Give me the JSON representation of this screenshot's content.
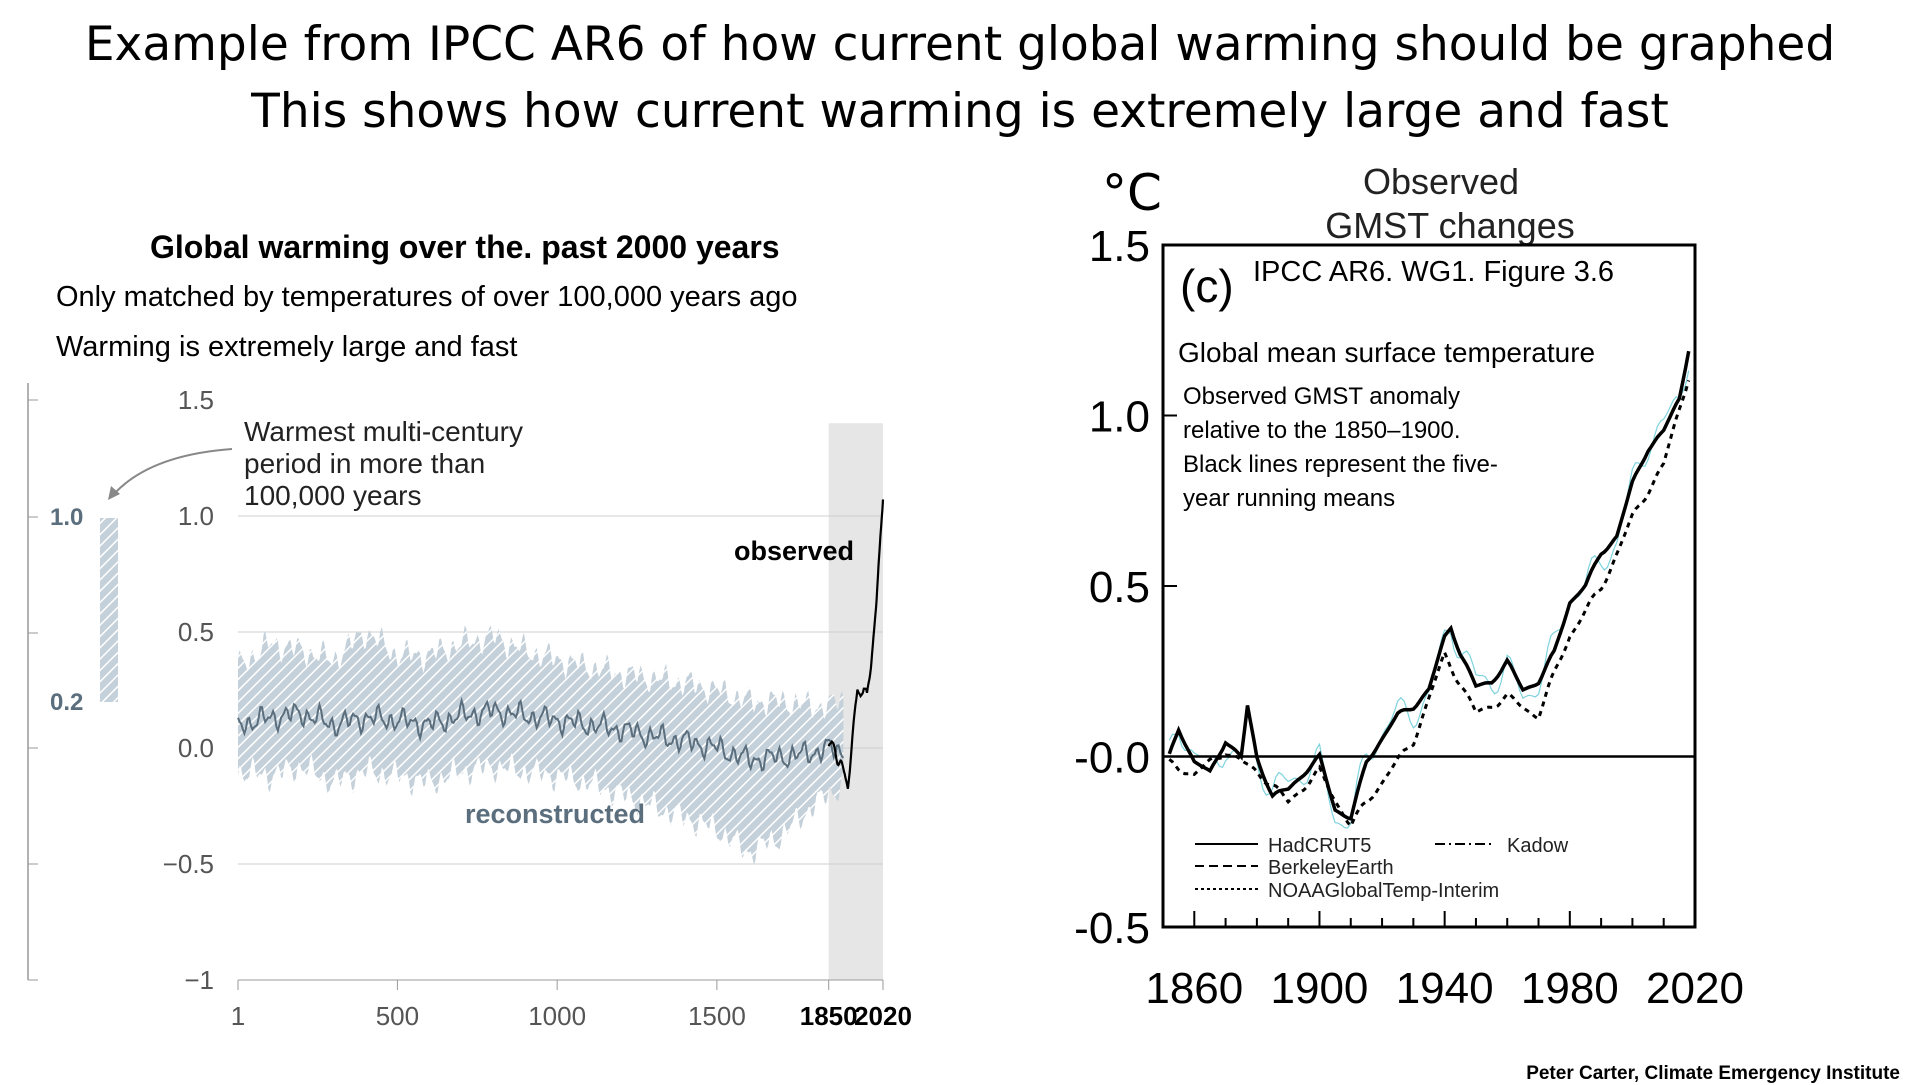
{
  "slide": {
    "title_line1": "Example from IPCC AR6 of how current global warming should be graphed",
    "title_line2": "This shows how current warming is extremely large and fast",
    "credit": "Peter Carter, Climate Emergency Institute"
  },
  "colors": {
    "reconstructed": "#5a6e7d",
    "band": "#a9b9c6",
    "observed": "#000000",
    "cyan": "#7fd3de",
    "shade": "#e6e6e6"
  },
  "left_chart": {
    "heading": "Global warming over the. past 2000 years",
    "sub1": "Only matched by temperatures of over 100,000 years ago",
    "sub2": "Warming is extremely large and fast",
    "annotation": [
      "Warmest multi-century",
      "period in more than",
      "100,000 years"
    ],
    "observed_label": "observed",
    "reconstructed_label": "reconstructed",
    "side_bar_top_label": "1.0",
    "side_bar_bottom_label": "0.2",
    "side_bar_range": [
      0.2,
      1.0
    ]
  },
  "right_chart": {
    "unit": "°C",
    "title_line1": "Observed",
    "title_line2": "GMST changes",
    "panel_letter": "(c)",
    "source": "IPCC AR6. WG1. Figure 3.6",
    "subtitle": "Global mean surface temperature",
    "note": [
      "Observed GMST anomaly",
      "relative to the 1850–1900.",
      "Black lines represent the five-",
      "year running means"
    ],
    "legend": [
      {
        "name": "HadCRUT5",
        "style": "solid"
      },
      {
        "name": "Kadow",
        "style": "dashdot"
      },
      {
        "name": "BerkeleyEarth",
        "style": "dashed"
      },
      {
        "name": "NOAAGlobalTemp-Interim",
        "style": "dotted"
      }
    ]
  },
  "chart_data": [
    {
      "type": "area",
      "title": "Global warming over the. past 2000 years",
      "xlabel": "",
      "ylabel": "",
      "xlim": [
        1,
        2020
      ],
      "ylim": [
        -1,
        1.5
      ],
      "x_ticks": [
        "1",
        "500",
        "1000",
        "1500",
        "1850",
        "2020"
      ],
      "y_ticks": [
        "1.5",
        "1.0",
        "0.5",
        "0.0",
        "−0.5",
        "−1"
      ],
      "grid": true,
      "shaded_region": [
        1850,
        2020
      ],
      "series": [
        {
          "name": "reconstructed",
          "x": [
            1,
            100,
            200,
            300,
            400,
            500,
            600,
            700,
            800,
            900,
            1000,
            1100,
            1200,
            1300,
            1400,
            1500,
            1600,
            1700,
            1800,
            1850,
            1900
          ],
          "values": [
            0.1,
            0.13,
            0.15,
            0.1,
            0.13,
            0.12,
            0.1,
            0.14,
            0.16,
            0.14,
            0.12,
            0.1,
            0.08,
            0.05,
            0.03,
            0.0,
            -0.05,
            -0.04,
            -0.02,
            0.0,
            -0.02
          ],
          "lower": [
            -0.1,
            -0.12,
            -0.08,
            -0.15,
            -0.1,
            -0.12,
            -0.15,
            -0.1,
            -0.08,
            -0.1,
            -0.12,
            -0.15,
            -0.2,
            -0.25,
            -0.3,
            -0.35,
            -0.45,
            -0.38,
            -0.25,
            -0.2,
            -0.15
          ],
          "upper": [
            0.35,
            0.45,
            0.42,
            0.38,
            0.5,
            0.4,
            0.4,
            0.45,
            0.48,
            0.42,
            0.38,
            0.35,
            0.32,
            0.3,
            0.28,
            0.25,
            0.2,
            0.2,
            0.18,
            0.18,
            0.22
          ]
        },
        {
          "name": "observed",
          "x": [
            1850,
            1860,
            1870,
            1880,
            1890,
            1900,
            1910,
            1920,
            1930,
            1940,
            1950,
            1960,
            1970,
            1980,
            1990,
            2000,
            2010,
            2020
          ],
          "values": [
            -0.02,
            0.0,
            -0.02,
            -0.05,
            -0.08,
            -0.1,
            -0.15,
            0.0,
            0.1,
            0.25,
            0.22,
            0.25,
            0.2,
            0.35,
            0.5,
            0.65,
            0.85,
            1.1
          ]
        }
      ]
    },
    {
      "type": "line",
      "title": "Observed GMST changes",
      "ylabel": "°C",
      "xlim": [
        1850,
        2020
      ],
      "ylim": [
        -0.5,
        1.5
      ],
      "x_ticks": [
        "1860",
        "1900",
        "1940",
        "1980",
        "2020"
      ],
      "y_ticks": [
        "1.5",
        "1.0",
        "0.5",
        "-0.0",
        "-0.5"
      ],
      "grid": false,
      "series": [
        {
          "name": "HadCRUT5",
          "x": [
            1852,
            1855,
            1860,
            1865,
            1870,
            1875,
            1877,
            1880,
            1885,
            1890,
            1895,
            1900,
            1905,
            1910,
            1915,
            1920,
            1925,
            1930,
            1935,
            1940,
            1942,
            1945,
            1950,
            1955,
            1960,
            1965,
            1970,
            1975,
            1980,
            1985,
            1990,
            1995,
            2000,
            2005,
            2010,
            2015,
            2018
          ],
          "values": [
            0.0,
            0.08,
            -0.02,
            -0.05,
            0.05,
            0.0,
            0.15,
            0.0,
            -0.12,
            -0.1,
            -0.05,
            0.0,
            -0.15,
            -0.18,
            -0.02,
            0.05,
            0.12,
            0.15,
            0.2,
            0.35,
            0.38,
            0.3,
            0.2,
            0.22,
            0.28,
            0.2,
            0.22,
            0.3,
            0.45,
            0.5,
            0.6,
            0.65,
            0.8,
            0.9,
            0.95,
            1.05,
            1.2
          ]
        },
        {
          "name": "NOAAGlobalTemp-Interim",
          "x": [
            1852,
            1860,
            1870,
            1880,
            1890,
            1900,
            1910,
            1920,
            1930,
            1940,
            1950,
            1960,
            1970,
            1980,
            1990,
            2000,
            2010,
            2018
          ],
          "values": [
            -0.02,
            -0.06,
            0.02,
            -0.04,
            -0.14,
            -0.04,
            -0.2,
            -0.08,
            0.05,
            0.3,
            0.12,
            0.18,
            0.12,
            0.35,
            0.5,
            0.7,
            0.85,
            1.12
          ]
        }
      ]
    }
  ]
}
